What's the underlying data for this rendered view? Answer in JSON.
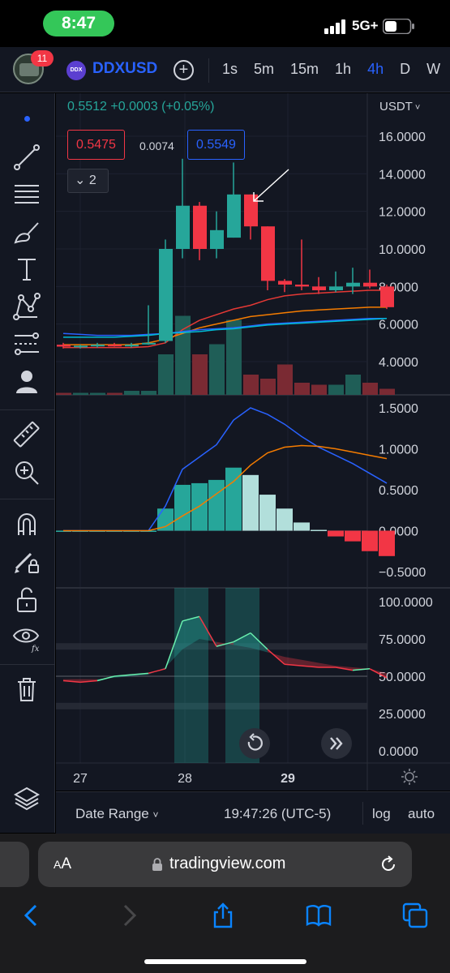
{
  "status": {
    "time": "8:47",
    "network": "5G+"
  },
  "header": {
    "notification_count": "11",
    "symbol_logo": "DDX",
    "symbol": "DDXUSD",
    "add_label": "+",
    "intervals": [
      {
        "label": "1s",
        "active": false
      },
      {
        "label": "5m",
        "active": false
      },
      {
        "label": "15m",
        "active": false
      },
      {
        "label": "1h",
        "active": false
      },
      {
        "label": "4h",
        "active": true
      },
      {
        "label": "D",
        "active": false
      },
      {
        "label": "W",
        "active": false
      }
    ]
  },
  "toolbar": {
    "tools": [
      "trend-line-icon",
      "fib-retracement-icon",
      "brush-icon",
      "text-icon",
      "pattern-icon",
      "prediction-icon",
      "person-icon",
      "ruler-icon",
      "zoom-in-icon",
      "magnet-icon",
      "lock-draw-icon",
      "unlock-icon",
      "eye-fx-icon",
      "trash-icon",
      "layers-icon"
    ]
  },
  "chart": {
    "legend": "0.5512  +0.0003 (+0.05%)",
    "bid": "0.5475",
    "spread": "0.0074",
    "ask": "0.5549",
    "collapse_label": "2",
    "currency": "USDT",
    "colors": {
      "up": "#26a69a",
      "down": "#f23645",
      "accent": "#2962ff",
      "ma_red": "#e53935",
      "ma_orange": "#f57c00",
      "ma_blue": "#2962ff",
      "ma_teal": "#00bcd4"
    },
    "price_axis": [
      "16.0000",
      "14.0000",
      "12.0000",
      "10.0000",
      "8.0000",
      "6.0000",
      "4.0000"
    ],
    "macd_axis": [
      "1.5000",
      "1.0000",
      "0.5000",
      "0.0000",
      "−0.5000"
    ],
    "rsi_axis": [
      "100.0000",
      "75.0000",
      "50.0000",
      "25.0000",
      "0.0000"
    ],
    "date_axis": [
      {
        "label": "27",
        "bold": false
      },
      {
        "label": "28",
        "bold": false
      },
      {
        "label": "29",
        "bold": true
      }
    ]
  },
  "chart_data": {
    "type": "candlestick",
    "candles": [
      {
        "o": 4.9,
        "h": 5.0,
        "l": 4.7,
        "c": 4.8,
        "v": 0.1
      },
      {
        "o": 4.8,
        "h": 4.9,
        "l": 4.7,
        "c": 4.85,
        "v": 0.1
      },
      {
        "o": 4.85,
        "h": 5.0,
        "l": 4.75,
        "c": 4.9,
        "v": 0.1
      },
      {
        "o": 4.9,
        "h": 5.0,
        "l": 4.8,
        "c": 4.85,
        "v": 0.1
      },
      {
        "o": 4.85,
        "h": 5.0,
        "l": 4.75,
        "c": 4.9,
        "v": 0.2
      },
      {
        "o": 5.0,
        "h": 7.0,
        "l": 4.9,
        "c": 5.0,
        "v": 0.2
      },
      {
        "o": 5.1,
        "h": 10.5,
        "l": 5.0,
        "c": 10.0,
        "v": 2.0
      },
      {
        "o": 10.0,
        "h": 14.8,
        "l": 9.5,
        "c": 12.3,
        "v": 3.9
      },
      {
        "o": 12.3,
        "h": 12.5,
        "l": 9.4,
        "c": 10.0,
        "v": 2.0
      },
      {
        "o": 10.0,
        "h": 12.0,
        "l": 9.5,
        "c": 11.0,
        "v": 2.5
      },
      {
        "o": 10.6,
        "h": 14.6,
        "l": 10.6,
        "c": 12.9,
        "v": 3.7
      },
      {
        "o": 12.9,
        "h": 12.9,
        "l": 10.5,
        "c": 11.2,
        "v": 1.0
      },
      {
        "o": 11.2,
        "h": 11.2,
        "l": 7.8,
        "c": 8.3,
        "v": 0.8
      },
      {
        "o": 8.3,
        "h": 8.4,
        "l": 7.7,
        "c": 8.1,
        "v": 1.5
      },
      {
        "o": 8.1,
        "h": 10.5,
        "l": 7.8,
        "c": 8.0,
        "v": 0.6
      },
      {
        "o": 8.0,
        "h": 8.5,
        "l": 7.6,
        "c": 7.8,
        "v": 0.5
      },
      {
        "o": 7.8,
        "h": 8.8,
        "l": 7.7,
        "c": 8.0,
        "v": 0.5
      },
      {
        "o": 8.0,
        "h": 9.0,
        "l": 7.6,
        "c": 8.2,
        "v": 1.0
      },
      {
        "o": 8.2,
        "h": 8.9,
        "l": 7.9,
        "c": 8.0,
        "v": 0.6
      },
      {
        "o": 8.0,
        "h": 8.1,
        "l": 6.8,
        "c": 6.9,
        "v": 0.3
      }
    ],
    "moving_averages": [
      {
        "name": "",
        "color": "#e53935",
        "values": [
          4.75,
          4.75,
          4.75,
          4.75,
          4.75,
          4.8,
          5.0,
          5.7,
          6.2,
          6.5,
          6.8,
          7.0,
          7.3,
          7.5,
          7.6,
          7.65,
          7.7,
          7.75,
          7.8,
          7.8
        ]
      },
      {
        "name": "",
        "color": "#f57c00",
        "values": [
          4.9,
          4.9,
          4.9,
          4.9,
          4.9,
          5.0,
          5.2,
          5.5,
          5.8,
          6.0,
          6.2,
          6.4,
          6.5,
          6.6,
          6.7,
          6.75,
          6.8,
          6.85,
          6.9,
          6.9
        ]
      },
      {
        "name": "",
        "color": "#2962ff",
        "values": [
          5.5,
          5.45,
          5.4,
          5.4,
          5.4,
          5.45,
          5.5,
          5.6,
          5.7,
          5.75,
          5.8,
          5.9,
          6.0,
          6.05,
          6.1,
          6.15,
          6.2,
          6.25,
          6.3,
          6.3
        ]
      },
      {
        "name": "",
        "color": "#00bcd4",
        "values": [
          5.3,
          5.3,
          5.3,
          5.3,
          5.35,
          5.4,
          5.5,
          5.55,
          5.6,
          5.7,
          5.75,
          5.85,
          5.95,
          6.0,
          6.05,
          6.1,
          6.15,
          6.2,
          6.25,
          6.3
        ]
      }
    ],
    "macd": {
      "histogram": [
        0.0,
        0.0,
        0.0,
        0.0,
        0.0,
        0.0,
        0.27,
        0.56,
        0.58,
        0.62,
        0.77,
        0.68,
        0.44,
        0.27,
        0.1,
        0.01,
        -0.07,
        -0.13,
        -0.25,
        -0.31
      ],
      "macd_line": [
        0.0,
        0.0,
        0.0,
        0.0,
        0.0,
        0.0,
        0.3,
        0.75,
        0.9,
        1.05,
        1.35,
        1.5,
        1.42,
        1.3,
        1.15,
        1.02,
        0.92,
        0.82,
        0.7,
        0.58
      ],
      "signal_line": [
        0.0,
        0.0,
        0.0,
        0.0,
        0.0,
        0.0,
        0.05,
        0.18,
        0.3,
        0.45,
        0.6,
        0.8,
        0.95,
        1.02,
        1.04,
        1.03,
        1.0,
        0.96,
        0.92,
        0.88
      ],
      "ylim": [
        -0.5,
        1.5
      ]
    },
    "rsi": {
      "values": [
        47,
        46,
        47,
        50,
        51,
        52,
        55,
        87,
        90,
        70,
        73,
        79,
        68,
        58,
        57,
        56,
        56,
        54,
        55,
        49
      ],
      "smooth": [
        48,
        48,
        48,
        49,
        50,
        51,
        56,
        68,
        75,
        73,
        71,
        69,
        66,
        63,
        61,
        59,
        57,
        56,
        55,
        52
      ],
      "bands": [
        30,
        70
      ],
      "ylim": [
        0,
        100
      ]
    },
    "ylim_price": [
      3.0,
      16.0
    ]
  },
  "bottom": {
    "date_range": "Date Range",
    "time": "19:47:26 (UTC-5)",
    "log": "log",
    "auto": "auto"
  },
  "safari": {
    "text_size": "AA",
    "url": "tradingview.com"
  }
}
